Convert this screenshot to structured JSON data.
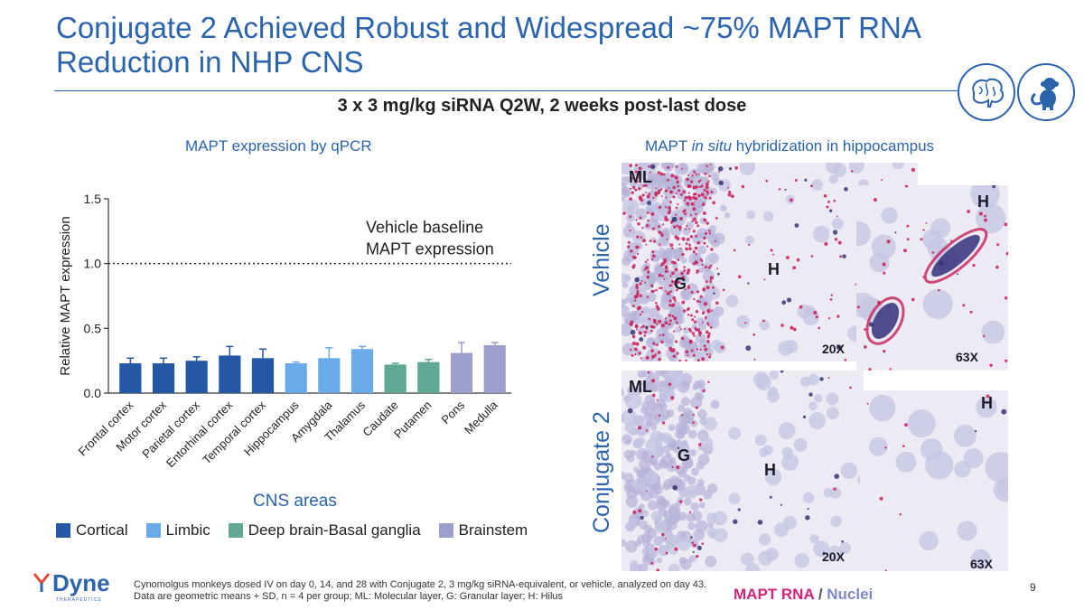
{
  "slide": {
    "title": "Conjugate 2 Achieved Robust and Widespread ~75% MAPT RNA Reduction in NHP CNS",
    "subtitle": "3 x 3 mg/kg siRNA Q2W, 2 weeks post-last dose",
    "page_number": "9",
    "brand_color": "#2b63ad",
    "icons": [
      "brain-icon",
      "monkey-icon"
    ]
  },
  "left_panel": {
    "title": "MAPT expression by qPCR"
  },
  "chart_data": {
    "type": "bar",
    "ylabel": "Relative MAPT expression",
    "xlabel": "CNS areas",
    "ylim": [
      0,
      1.5
    ],
    "yticks": [
      "0.0",
      "0.5",
      "1.0",
      "1.5"
    ],
    "error_bars": "SD",
    "categories": [
      "Frontal cortex",
      "Motor cortex",
      "Parietal cortex",
      "Entorhinal cortex",
      "Temporal cortex",
      "Hippocampus",
      "Amygdala",
      "Thalamus",
      "Caudate",
      "Putamen",
      "Pons",
      "Medulla"
    ],
    "values": [
      0.23,
      0.23,
      0.25,
      0.29,
      0.27,
      0.23,
      0.27,
      0.34,
      0.22,
      0.24,
      0.31,
      0.37
    ],
    "errors": [
      0.04,
      0.04,
      0.03,
      0.07,
      0.07,
      0.01,
      0.08,
      0.02,
      0.01,
      0.02,
      0.08,
      0.02
    ],
    "groups": [
      "Cortical",
      "Cortical",
      "Cortical",
      "Cortical",
      "Cortical",
      "Limbic",
      "Limbic",
      "Limbic",
      "Deep brain-Basal ganglia",
      "Deep brain-Basal ganglia",
      "Brainstem",
      "Brainstem"
    ],
    "legend": [
      {
        "name": "Cortical",
        "color": "#2457a5"
      },
      {
        "name": "Limbic",
        "color": "#6aaae8"
      },
      {
        "name": "Deep brain-Basal ganglia",
        "color": "#5fa893"
      },
      {
        "name": "Brainstem",
        "color": "#9c9fcc"
      }
    ],
    "reference_line": {
      "value": 1.0,
      "label_line1": "Vehicle baseline",
      "label_line2": "MAPT expression",
      "style": "dotted"
    }
  },
  "right_panel": {
    "title_pre": "MAPT ",
    "title_italic": "in situ",
    "title_post": " hybridization in hippocampus",
    "rows": [
      {
        "label": "Vehicle",
        "low_mag": "20X",
        "high_mag": "63X"
      },
      {
        "label": "Conjugate 2",
        "low_mag": "20X",
        "high_mag": "63X"
      }
    ],
    "region_labels": {
      "ml": "ML",
      "g": "G",
      "h": "H"
    },
    "stain_legend": {
      "rna": "MAPT RNA",
      "sep": " / ",
      "nuclei": "Nuclei",
      "rna_color": "#d4237a",
      "nuclei_color": "#7f8ac4"
    }
  },
  "footnote": {
    "line1": "Cynomolgus monkeys dosed IV on day 0, 14, and 28 with Conjugate 2, 3 mg/kg siRNA-equivalent, or vehicle, analyzed on day 43.",
    "line2": "Data are geometric means + SD, n = 4 per group; ML: Molecular layer, G: Granular layer; H: Hilus"
  },
  "logo": {
    "name": "Dyne",
    "sub": "THERAPEUTICS"
  }
}
